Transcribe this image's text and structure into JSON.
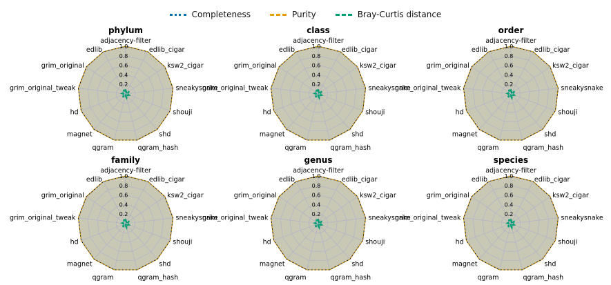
{
  "legend": [
    {
      "name": "Completeness",
      "color": "#0072B2",
      "style": "dotted"
    },
    {
      "name": "Purity",
      "color": "#E69F00",
      "style": "dashed"
    },
    {
      "name": "Bray-Curtis distance",
      "color": "#009E73",
      "style": "dashed"
    }
  ],
  "chart_data": [
    {
      "type": "radar",
      "title": "phylum"
    },
    {
      "type": "radar",
      "title": "class"
    },
    {
      "type": "radar",
      "title": "order"
    },
    {
      "type": "radar",
      "title": "family"
    },
    {
      "type": "radar",
      "title": "genus"
    },
    {
      "type": "radar",
      "title": "species"
    }
  ],
  "axes": {
    "categories": [
      "adjacency-filter",
      "edlib_cigar",
      "ksw2_cigar",
      "sneakysnake",
      "shouji",
      "shd",
      "qgram_hash",
      "qgram",
      "magnet",
      "hd",
      "grim_original_tweak",
      "grim_original",
      "edlib"
    ],
    "radial_ticks": [
      "0.2",
      "0.4",
      "0.6",
      "0.8",
      "1.0"
    ],
    "range": [
      0,
      1
    ]
  },
  "series_values": {
    "Completeness": [
      1,
      1,
      1,
      1,
      1,
      1,
      1,
      1,
      1,
      1,
      1,
      1,
      1
    ],
    "Purity": [
      1,
      1,
      1,
      1,
      1,
      1,
      1,
      1,
      1,
      1,
      1,
      1,
      1
    ],
    "Bray-Curtis distance": [
      0.08,
      0.03,
      0.09,
      0.03,
      0.07,
      0.04,
      0.08,
      0.03,
      0.09,
      0.03,
      0.07,
      0.04,
      0.08
    ]
  },
  "fill_color": "#c8c8b4",
  "grid_color": "#b4b4c8"
}
